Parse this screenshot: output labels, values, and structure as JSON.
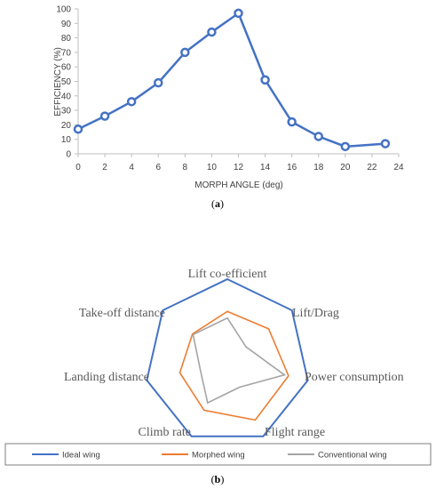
{
  "chart_data": [
    {
      "type": "line",
      "xlabel": "MORPH ANGLE (deg)",
      "ylabel": "EFFICIENCY (%)",
      "x_ticks": [
        "0",
        "2",
        "4",
        "6",
        "8",
        "10",
        "12",
        "14",
        "16",
        "18",
        "20",
        "22",
        "24"
      ],
      "y_ticks": [
        "0",
        "10",
        "20",
        "30",
        "40",
        "50",
        "60",
        "70",
        "80",
        "90",
        "100"
      ],
      "xlim": [
        0,
        24
      ],
      "ylim": [
        0,
        100
      ],
      "series": [
        {
          "color": "#4472c4",
          "points": [
            {
              "x": 0,
              "y": 17
            },
            {
              "x": 2,
              "y": 26
            },
            {
              "x": 4,
              "y": 36
            },
            {
              "x": 6,
              "y": 49
            },
            {
              "x": 8,
              "y": 70
            },
            {
              "x": 10,
              "y": 84
            },
            {
              "x": 12,
              "y": 97
            },
            {
              "x": 14,
              "y": 51
            },
            {
              "x": 16,
              "y": 22
            },
            {
              "x": 18,
              "y": 12
            },
            {
              "x": 20,
              "y": 5
            },
            {
              "x": 23,
              "y": 7
            }
          ]
        }
      ],
      "caption_open": "(",
      "caption_letter": "a",
      "caption_close": ")"
    },
    {
      "type": "radar",
      "axes": [
        "Lift co-efficient",
        "Lift/Drag",
        "Power consumption",
        "Flight range",
        "Climb rate",
        "Landing distance",
        "Take-off distance"
      ],
      "max": 100,
      "series": [
        {
          "name": "Ideal wing",
          "color": "#4472c4",
          "values": [
            100,
            100,
            100,
            100,
            100,
            100,
            100
          ]
        },
        {
          "name": "Morphed wing",
          "color": "#ed7d31",
          "values": [
            61,
            64,
            76,
            78,
            65,
            59,
            54
          ]
        },
        {
          "name": "Conventional wing",
          "color": "#a5a5a5",
          "values": [
            53,
            29,
            71,
            34,
            55,
            34,
            53
          ]
        }
      ],
      "legend_position": "bottom",
      "caption_open": "(",
      "caption_letter": "b",
      "caption_close": ")"
    }
  ]
}
